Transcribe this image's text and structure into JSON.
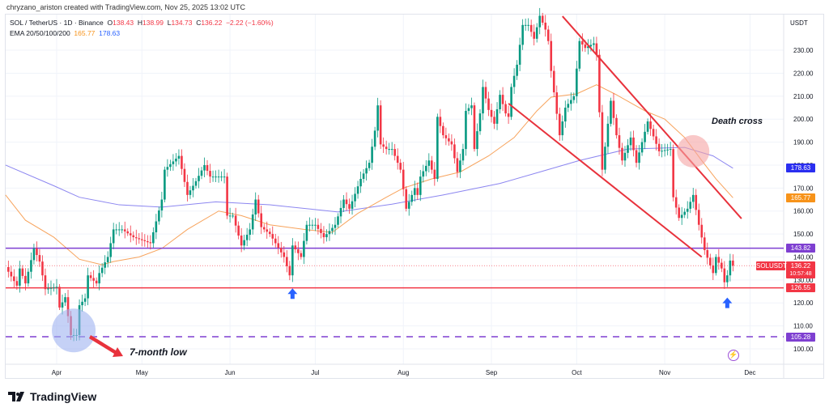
{
  "credit": "chryzano_ariston created with TradingView.com, Nov 25, 2025 13:02 UTC",
  "legend": {
    "symbol": "SOL / TetherUS · 1D · Binance",
    "o_label": "O",
    "o": "138.43",
    "h_label": "H",
    "h": "138.99",
    "l_label": "L",
    "l": "134.73",
    "c_label": "C",
    "c": "136.22",
    "change": "−2.22 (−1.60%)",
    "ema_label": "EMA 20/50/100/200",
    "ema1": "165.77",
    "ema2": "178.63"
  },
  "axis": {
    "currency": "USDT",
    "price_ticks": [
      "100.00",
      "110.00",
      "120.00",
      "130.00",
      "140.00",
      "150.00",
      "160.00",
      "170.00",
      "180.00",
      "190.00",
      "200.00",
      "210.00",
      "220.00",
      "230.00"
    ],
    "time_ticks": [
      {
        "label": "Apr",
        "date": "2025-04-01"
      },
      {
        "label": "May",
        "date": "2025-05-01"
      },
      {
        "label": "Jun",
        "date": "2025-06-01"
      },
      {
        "label": "Jul",
        "date": "2025-07-01"
      },
      {
        "label": "Aug",
        "date": "2025-08-01"
      },
      {
        "label": "Sep",
        "date": "2025-09-01"
      },
      {
        "label": "Oct",
        "date": "2025-10-01"
      },
      {
        "label": "Nov",
        "date": "2025-11-01"
      },
      {
        "label": "Dec",
        "date": "2025-12-01"
      }
    ]
  },
  "price_tags": {
    "ema200": {
      "value": "178.63",
      "color": "#2a2ef0"
    },
    "ema50": {
      "value": "165.77",
      "color": "#f7931a"
    },
    "resistance": {
      "value": "143.82",
      "color": "#7e3fd1"
    },
    "last": {
      "symbol": "SOLUSDT",
      "value": "136.22",
      "countdown": "10:57:48",
      "color": "#f23645"
    },
    "support": {
      "value": "126.55",
      "color": "#f23645"
    },
    "low": {
      "value": "105.28",
      "color": "#7e3fd1"
    }
  },
  "annotations": {
    "death_cross": "Death cross",
    "seven_month_low": "7-month low"
  },
  "brand": "TradingView",
  "colors": {
    "up": "#089981",
    "down": "#f23645",
    "ema50": "#f7a35c",
    "ema200": "#8c86f0",
    "trend": "#e8323c"
  },
  "chart_data": {
    "type": "candlestick",
    "ylim": [
      95,
      245
    ],
    "closes": [
      [
        "2025-03-14",
        135.6
      ],
      [
        "2025-03-18",
        127.5
      ],
      [
        "2025-03-19",
        135
      ],
      [
        "2025-03-21",
        128.5
      ],
      [
        "2025-03-24",
        143.7
      ],
      [
        "2025-03-26",
        138
      ],
      [
        "2025-03-28",
        126
      ],
      [
        "2025-04-01",
        127
      ],
      [
        "2025-04-02",
        118
      ],
      [
        "2025-04-04",
        122.5
      ],
      [
        "2025-04-06",
        106
      ],
      [
        "2025-04-08",
        106
      ],
      [
        "2025-04-09",
        119
      ],
      [
        "2025-04-11",
        122
      ],
      [
        "2025-04-12",
        132
      ],
      [
        "2025-04-15",
        128.5
      ],
      [
        "2025-04-16",
        133
      ],
      [
        "2025-04-19",
        140
      ],
      [
        "2025-04-21",
        152
      ],
      [
        "2025-04-24",
        152
      ],
      [
        "2025-04-28",
        148.6
      ],
      [
        "2025-05-04",
        146
      ],
      [
        "2025-05-08",
        165
      ],
      [
        "2025-05-09",
        178
      ],
      [
        "2025-05-14",
        184
      ],
      [
        "2025-05-17",
        167
      ],
      [
        "2025-05-20",
        173
      ],
      [
        "2025-05-23",
        180
      ],
      [
        "2025-05-25",
        175
      ],
      [
        "2025-05-30",
        175
      ],
      [
        "2025-05-31",
        158
      ],
      [
        "2025-06-02",
        158
      ],
      [
        "2025-06-05",
        145
      ],
      [
        "2025-06-08",
        152
      ],
      [
        "2025-06-10",
        165
      ],
      [
        "2025-06-12",
        153
      ],
      [
        "2025-06-15",
        150
      ],
      [
        "2025-06-20",
        140
      ],
      [
        "2025-06-22",
        132
      ],
      [
        "2025-06-23",
        145
      ],
      [
        "2025-06-26",
        140
      ],
      [
        "2025-06-28",
        154
      ],
      [
        "2025-07-01",
        154
      ],
      [
        "2025-07-04",
        148.6
      ],
      [
        "2025-07-08",
        154
      ],
      [
        "2025-07-11",
        165
      ],
      [
        "2025-07-13",
        161
      ],
      [
        "2025-07-17",
        174
      ],
      [
        "2025-07-20",
        181
      ],
      [
        "2025-07-22",
        195
      ],
      [
        "2025-07-23",
        206
      ],
      [
        "2025-07-24",
        189
      ],
      [
        "2025-07-26",
        187
      ],
      [
        "2025-07-28",
        187
      ],
      [
        "2025-07-31",
        178
      ],
      [
        "2025-08-02",
        161
      ],
      [
        "2025-08-05",
        170
      ],
      [
        "2025-08-06",
        167
      ],
      [
        "2025-08-07",
        175
      ],
      [
        "2025-08-10",
        182
      ],
      [
        "2025-08-12",
        174
      ],
      [
        "2025-08-13",
        201
      ],
      [
        "2025-08-15",
        193
      ],
      [
        "2025-08-18",
        189
      ],
      [
        "2025-08-20",
        177
      ],
      [
        "2025-08-22",
        187
      ],
      [
        "2025-08-23",
        203.6
      ],
      [
        "2025-08-25",
        206
      ],
      [
        "2025-08-26",
        187
      ],
      [
        "2025-08-28",
        202.5
      ],
      [
        "2025-08-29",
        214
      ],
      [
        "2025-08-31",
        204
      ],
      [
        "2025-09-02",
        198
      ],
      [
        "2025-09-04",
        210.6
      ],
      [
        "2025-09-06",
        202.5
      ],
      [
        "2025-09-07",
        201
      ],
      [
        "2025-09-08",
        214
      ],
      [
        "2025-09-10",
        223.7
      ],
      [
        "2025-09-12",
        241
      ],
      [
        "2025-09-14",
        241
      ],
      [
        "2025-09-16",
        235
      ],
      [
        "2025-09-18",
        245
      ],
      [
        "2025-09-20",
        239
      ],
      [
        "2025-09-21",
        234
      ],
      [
        "2025-09-22",
        221
      ],
      [
        "2025-09-25",
        193
      ],
      [
        "2025-09-27",
        205
      ],
      [
        "2025-09-30",
        210
      ],
      [
        "2025-10-02",
        234
      ],
      [
        "2025-10-04",
        231
      ],
      [
        "2025-10-07",
        233
      ],
      [
        "2025-10-08",
        228
      ],
      [
        "2025-10-10",
        178
      ],
      [
        "2025-10-13",
        208
      ],
      [
        "2025-10-15",
        193
      ],
      [
        "2025-10-17",
        182
      ],
      [
        "2025-10-20",
        192
      ],
      [
        "2025-10-22",
        181
      ],
      [
        "2025-10-26",
        199
      ],
      [
        "2025-10-30",
        186
      ],
      [
        "2025-11-03",
        187
      ],
      [
        "2025-11-04",
        166
      ],
      [
        "2025-11-06",
        157
      ],
      [
        "2025-11-09",
        161
      ],
      [
        "2025-11-11",
        167
      ],
      [
        "2025-11-13",
        154
      ],
      [
        "2025-11-15",
        143
      ],
      [
        "2025-11-18",
        133
      ],
      [
        "2025-11-19",
        140
      ],
      [
        "2025-11-21",
        135
      ],
      [
        "2025-11-22",
        129
      ],
      [
        "2025-11-23",
        132
      ],
      [
        "2025-11-24",
        138.43
      ],
      [
        "2025-11-25",
        136.22
      ]
    ],
    "ema50": [
      [
        "2025-03-14",
        167
      ],
      [
        "2025-03-21",
        156
      ],
      [
        "2025-03-31",
        148.6
      ],
      [
        "2025-04-09",
        139
      ],
      [
        "2025-04-17",
        136.6
      ],
      [
        "2025-04-21",
        138
      ],
      [
        "2025-04-30",
        140
      ],
      [
        "2025-05-08",
        143.7
      ],
      [
        "2025-05-17",
        152
      ],
      [
        "2025-05-28",
        160
      ],
      [
        "2025-06-05",
        158
      ],
      [
        "2025-06-15",
        154
      ],
      [
        "2025-06-27",
        152
      ],
      [
        "2025-07-07",
        150.7
      ],
      [
        "2025-07-16",
        159
      ],
      [
        "2025-07-26",
        166
      ],
      [
        "2025-08-01",
        170
      ],
      [
        "2025-08-11",
        174
      ],
      [
        "2025-08-21",
        177
      ],
      [
        "2025-08-31",
        184
      ],
      [
        "2025-09-09",
        192
      ],
      [
        "2025-09-17",
        203.6
      ],
      [
        "2025-09-22",
        209.6
      ],
      [
        "2025-10-01",
        211
      ],
      [
        "2025-10-08",
        215
      ],
      [
        "2025-10-15",
        210.6
      ],
      [
        "2025-10-25",
        203.6
      ],
      [
        "2025-11-01",
        200
      ],
      [
        "2025-11-08",
        192
      ],
      [
        "2025-11-14",
        182
      ],
      [
        "2025-11-19",
        174
      ],
      [
        "2025-11-25",
        165.77
      ]
    ],
    "ema200": [
      [
        "2025-03-14",
        180
      ],
      [
        "2025-03-31",
        171
      ],
      [
        "2025-04-09",
        166
      ],
      [
        "2025-04-23",
        162.7
      ],
      [
        "2025-05-08",
        161.7
      ],
      [
        "2025-05-27",
        164
      ],
      [
        "2025-06-15",
        162.7
      ],
      [
        "2025-07-09",
        159.6
      ],
      [
        "2025-07-28",
        163
      ],
      [
        "2025-08-15",
        167
      ],
      [
        "2025-09-04",
        172
      ],
      [
        "2025-09-18",
        177
      ],
      [
        "2025-10-02",
        182
      ],
      [
        "2025-10-19",
        187
      ],
      [
        "2025-11-08",
        187.7
      ],
      [
        "2025-11-18",
        184
      ],
      [
        "2025-11-25",
        178.63
      ]
    ],
    "horizontal_levels": [
      {
        "value": 143.82,
        "style": "solid",
        "color": "#7e3fd1"
      },
      {
        "value": 126.55,
        "style": "solid",
        "color": "#f23645"
      },
      {
        "value": 105.28,
        "style": "dashed",
        "color": "#7e3fd1"
      }
    ],
    "last_price": 136.22,
    "trendlines": [
      {
        "from": [
          "2025-09-26",
          244.8
        ],
        "to": [
          "2025-11-28",
          156.7
        ]
      },
      {
        "from": [
          "2025-09-07",
          206.8
        ],
        "to": [
          "2025-11-14",
          140
        ]
      }
    ],
    "markers": [
      {
        "type": "circle",
        "date": "2025-04-07",
        "price": 108,
        "color": "#9fb3f0"
      },
      {
        "type": "circle",
        "date": "2025-11-11",
        "price": 186,
        "color": "#f5a3a3"
      },
      {
        "type": "up-arrow",
        "date": "2025-06-23",
        "price": 123.5,
        "color": "#2962ff"
      },
      {
        "type": "up-arrow",
        "date": "2025-11-23",
        "price": 119.5,
        "color": "#2962ff"
      }
    ]
  }
}
